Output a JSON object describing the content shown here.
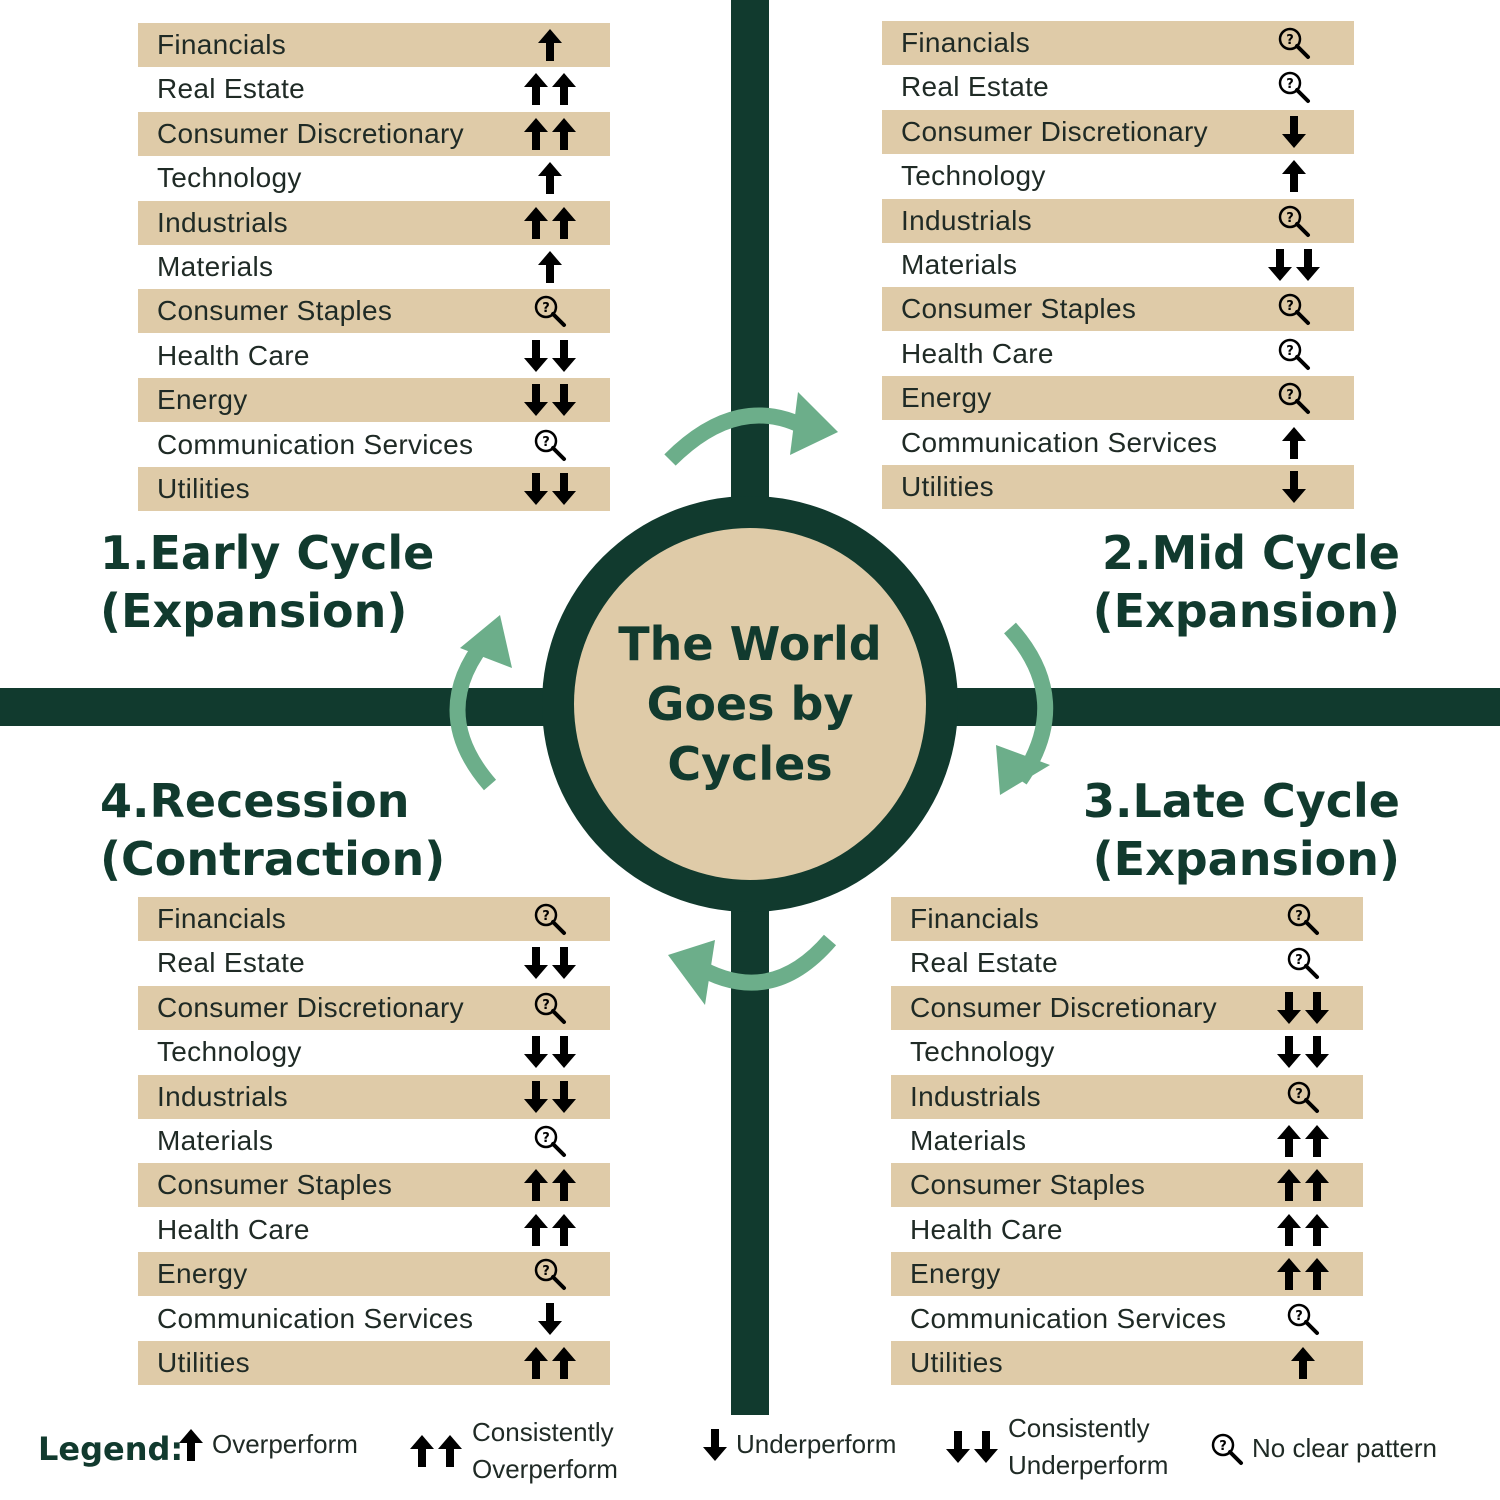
{
  "center_title": "The World Goes by Cycles",
  "colors": {
    "dark_green": "#113a2e",
    "tan": "#dfcba8",
    "arrow_green": "#6cae8a"
  },
  "phases": [
    {
      "id": "early",
      "line1": "1.Early Cycle",
      "line2": "(Expansion)",
      "rows": [
        {
          "label": "Financials",
          "signal": "up"
        },
        {
          "label": "Real Estate",
          "signal": "up2"
        },
        {
          "label": "Consumer Discretionary",
          "signal": "up2"
        },
        {
          "label": "Technology",
          "signal": "up"
        },
        {
          "label": "Industrials",
          "signal": "up2"
        },
        {
          "label": "Materials",
          "signal": "up"
        },
        {
          "label": "Consumer Staples",
          "signal": "unclear"
        },
        {
          "label": "Health Care",
          "signal": "down2"
        },
        {
          "label": "Energy",
          "signal": "down2"
        },
        {
          "label": "Communication Services",
          "signal": "unclear"
        },
        {
          "label": "Utilities",
          "signal": "down2"
        }
      ]
    },
    {
      "id": "mid",
      "line1": "2.Mid Cycle",
      "line2": "(Expansion)",
      "rows": [
        {
          "label": "Financials",
          "signal": "unclear"
        },
        {
          "label": "Real Estate",
          "signal": "unclear"
        },
        {
          "label": "Consumer Discretionary",
          "signal": "down"
        },
        {
          "label": "Technology",
          "signal": "up"
        },
        {
          "label": "Industrials",
          "signal": "unclear"
        },
        {
          "label": "Materials",
          "signal": "down2"
        },
        {
          "label": "Consumer Staples",
          "signal": "unclear"
        },
        {
          "label": "Health Care",
          "signal": "unclear"
        },
        {
          "label": "Energy",
          "signal": "unclear"
        },
        {
          "label": "Communication Services",
          "signal": "up"
        },
        {
          "label": "Utilities",
          "signal": "down"
        }
      ]
    },
    {
      "id": "late",
      "line1": "3.Late Cycle",
      "line2": "(Expansion)",
      "rows": [
        {
          "label": "Financials",
          "signal": "unclear"
        },
        {
          "label": "Real Estate",
          "signal": "unclear"
        },
        {
          "label": "Consumer Discretionary",
          "signal": "down2"
        },
        {
          "label": "Technology",
          "signal": "down2"
        },
        {
          "label": "Industrials",
          "signal": "unclear"
        },
        {
          "label": "Materials",
          "signal": "up2"
        },
        {
          "label": "Consumer Staples",
          "signal": "up2"
        },
        {
          "label": "Health Care",
          "signal": "up2"
        },
        {
          "label": "Energy",
          "signal": "up2"
        },
        {
          "label": "Communication Services",
          "signal": "unclear"
        },
        {
          "label": "Utilities",
          "signal": "up"
        }
      ]
    },
    {
      "id": "recession",
      "line1": "4.Recession",
      "line2": "(Contraction)",
      "rows": [
        {
          "label": "Financials",
          "signal": "unclear"
        },
        {
          "label": "Real Estate",
          "signal": "down2"
        },
        {
          "label": "Consumer Discretionary",
          "signal": "unclear"
        },
        {
          "label": "Technology",
          "signal": "down2"
        },
        {
          "label": "Industrials",
          "signal": "down2"
        },
        {
          "label": "Materials",
          "signal": "unclear"
        },
        {
          "label": "Consumer Staples",
          "signal": "up2"
        },
        {
          "label": "Health Care",
          "signal": "up2"
        },
        {
          "label": "Energy",
          "signal": "unclear"
        },
        {
          "label": "Communication Services",
          "signal": "down"
        },
        {
          "label": "Utilities",
          "signal": "up2"
        }
      ]
    }
  ],
  "legend": {
    "title": "Legend:",
    "items": [
      {
        "signal": "up",
        "line1": "Overperform",
        "line2": ""
      },
      {
        "signal": "up2",
        "line1": "Consistently",
        "line2": "Overperform"
      },
      {
        "signal": "down",
        "line1": "Underperform",
        "line2": ""
      },
      {
        "signal": "down2",
        "line1": "Consistently",
        "line2": "Underperform"
      },
      {
        "signal": "unclear",
        "line1": "No clear pattern",
        "line2": ""
      }
    ]
  }
}
